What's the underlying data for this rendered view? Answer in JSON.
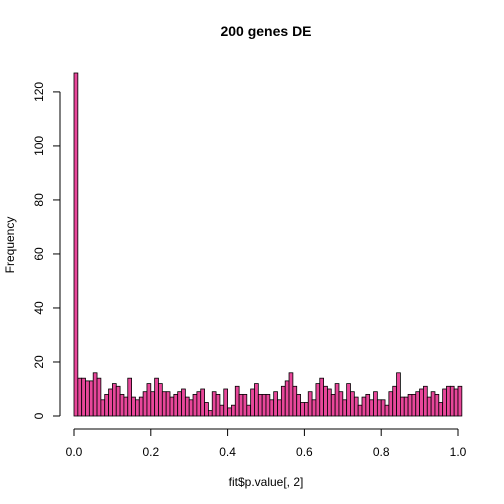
{
  "chart_data": {
    "type": "bar",
    "title": "200 genes DE",
    "xlabel": "fit$p.value[, 2]",
    "ylabel": "Frequency",
    "xlim": [
      0,
      1
    ],
    "ylim": [
      0,
      126
    ],
    "bin_width": 0.01,
    "bar_color": "#E8479A",
    "x_ticks": [
      "0.0",
      "0.2",
      "0.4",
      "0.6",
      "0.8",
      "1.0"
    ],
    "y_ticks": [
      "0",
      "20",
      "40",
      "60",
      "80",
      "100",
      "120"
    ],
    "values": [
      127,
      14,
      14,
      13,
      13,
      16,
      14,
      6,
      8,
      10,
      12,
      11,
      8,
      7,
      14,
      7,
      6,
      7,
      9,
      12,
      9,
      14,
      12,
      9,
      9,
      7,
      8,
      9,
      10,
      7,
      6,
      8,
      9,
      10,
      5,
      2,
      9,
      8,
      4,
      10,
      3,
      4,
      11,
      8,
      8,
      4,
      10,
      12,
      8,
      8,
      8,
      6,
      9,
      6,
      11,
      13,
      16,
      11,
      8,
      5,
      5,
      9,
      6,
      12,
      14,
      11,
      10,
      8,
      12,
      9,
      6,
      12,
      9,
      7,
      4,
      7,
      8,
      6,
      9,
      6,
      6,
      4,
      9,
      11,
      16,
      7,
      7,
      8,
      8,
      9,
      10,
      11,
      7,
      9,
      8,
      5,
      10,
      11,
      11,
      10,
      11
    ]
  }
}
